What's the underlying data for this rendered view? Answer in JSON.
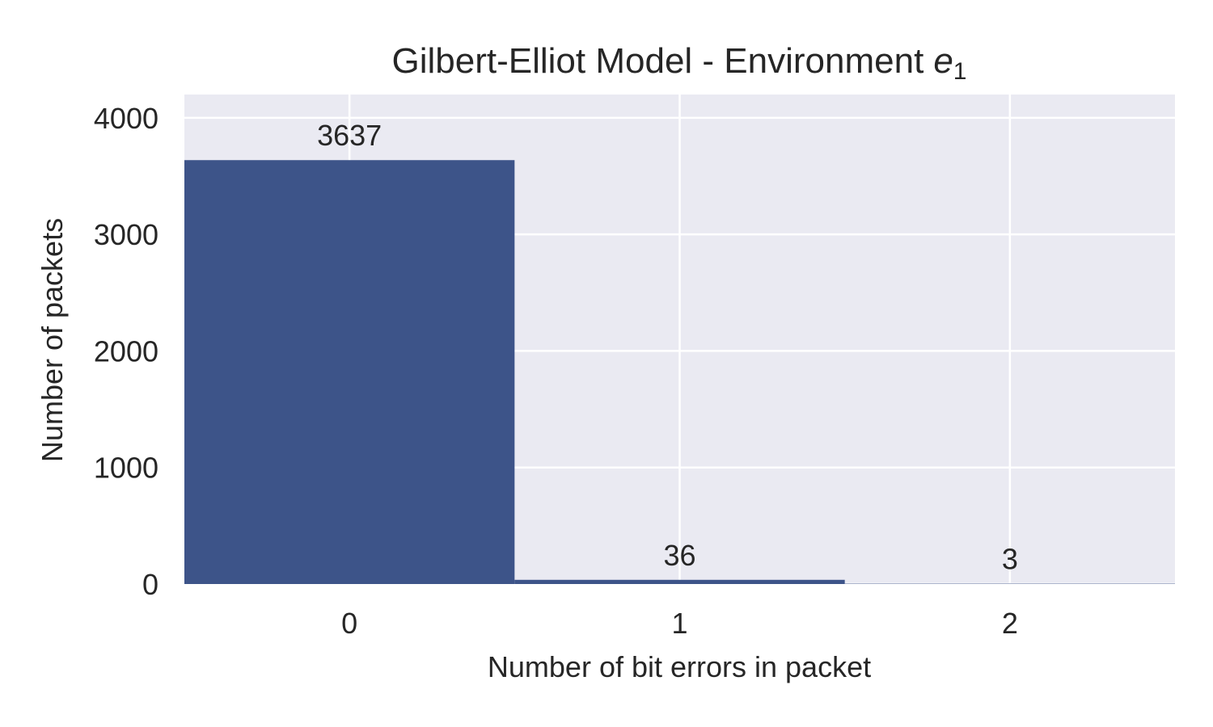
{
  "chart_data": {
    "type": "bar",
    "title": "Gilbert-Elliot Model - Environment",
    "title_symbol": "e",
    "title_symbol_subscript": "1",
    "xlabel": "Number of bit errors in packet",
    "ylabel": "Number of packets",
    "categories": [
      "0",
      "1",
      "2"
    ],
    "values": [
      3637,
      36,
      3
    ],
    "data_labels": [
      "3637",
      "36",
      "3"
    ],
    "ylim": [
      0,
      4200
    ],
    "yticks": [
      0,
      1000,
      2000,
      3000,
      4000
    ],
    "ytick_labels": [
      "0",
      "1000",
      "2000",
      "3000",
      "4000"
    ],
    "grid": true,
    "legend": "none",
    "bar_color": "#3d5489",
    "background_color": "#eaeaf2",
    "grid_color": "#ffffff"
  }
}
